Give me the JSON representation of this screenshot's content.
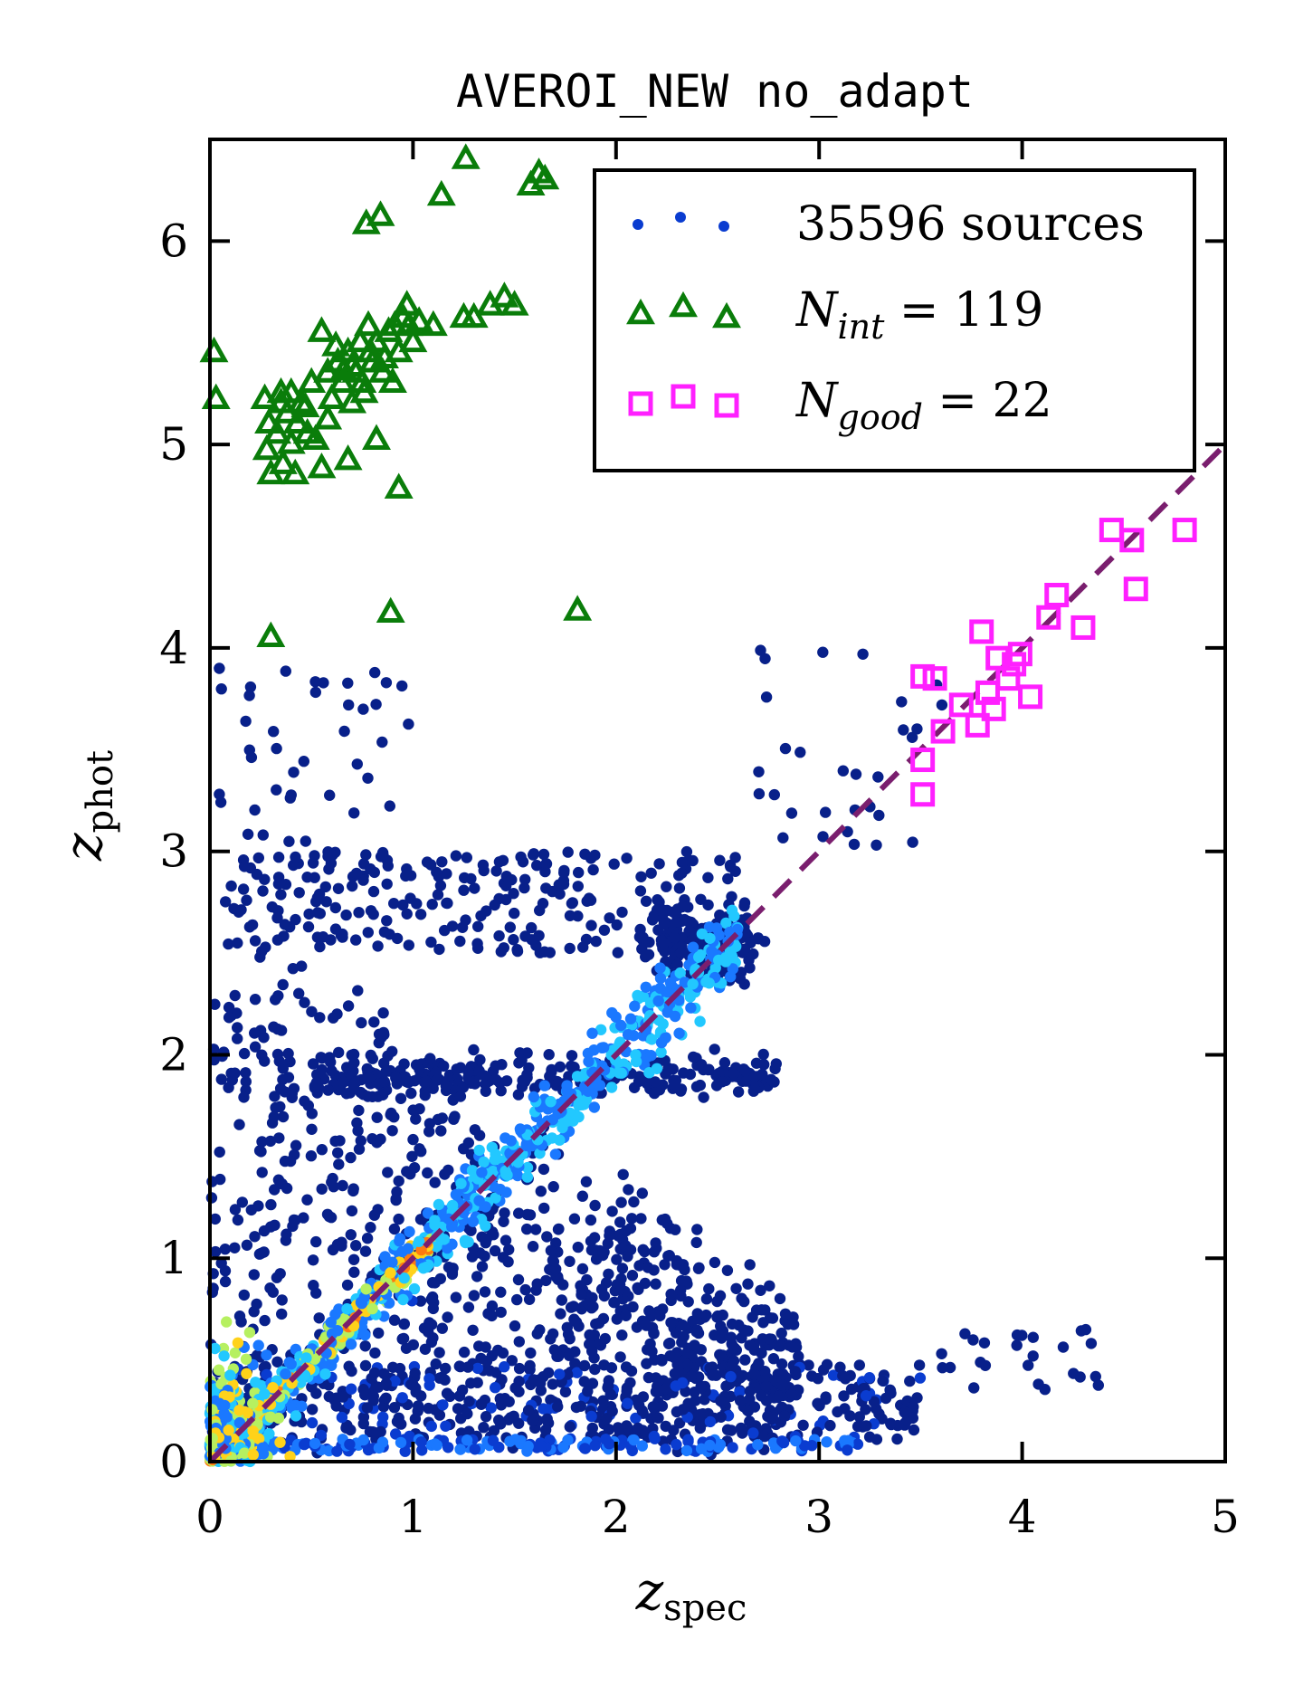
{
  "chart_data": {
    "type": "scatter",
    "title": "AVEROI_NEW no_adapt",
    "xlabel": "z",
    "xlabel_sub": "spec",
    "ylabel": "z",
    "ylabel_sub": "phot",
    "xlim": [
      0,
      5
    ],
    "ylim": [
      0,
      6.5
    ],
    "xticks": [
      "0",
      "1",
      "2",
      "3",
      "4",
      "5"
    ],
    "yticks": [
      "0",
      "1",
      "2",
      "3",
      "4",
      "5",
      "6"
    ],
    "grid": false,
    "legend_position": "top-right",
    "legend": {
      "sources": "35596 sources",
      "int_sym": "N",
      "int_sub": "int",
      "int_rest": " = 119",
      "good_sym": "N",
      "good_sub": "good",
      "good_rest": " = 22"
    },
    "colors": {
      "outlier": "#0a7d0a",
      "good": "#ff20ff",
      "one_to_one": "#7a1e6e",
      "density": [
        "#08208a",
        "#0a3cd0",
        "#1a78ff",
        "#22c8ff",
        "#b6f060",
        "#ffd21a",
        "#ff7a10"
      ]
    },
    "series": [
      {
        "name": "35596 sources",
        "style": "density-dots",
        "n": 35596
      },
      {
        "name": "N_int = 119",
        "style": "triangle",
        "points": [
          [
            0.02,
            5.45
          ],
          [
            0.03,
            5.22
          ],
          [
            0.27,
            5.22
          ],
          [
            0.29,
            5.1
          ],
          [
            0.28,
            4.97
          ],
          [
            0.3,
            4.85
          ],
          [
            0.33,
            5.05
          ],
          [
            0.35,
            5.25
          ],
          [
            0.38,
            5.15
          ],
          [
            0.4,
            5.25
          ],
          [
            0.42,
            4.85
          ],
          [
            0.45,
            5.2
          ],
          [
            0.5,
            5.3
          ],
          [
            0.52,
            5.02
          ],
          [
            0.55,
            4.88
          ],
          [
            0.58,
            5.35
          ],
          [
            0.6,
            5.22
          ],
          [
            0.63,
            5.4
          ],
          [
            0.65,
            5.3
          ],
          [
            0.68,
            5.45
          ],
          [
            0.7,
            5.2
          ],
          [
            0.72,
            5.35
          ],
          [
            0.74,
            5.5
          ],
          [
            0.76,
            5.25
          ],
          [
            0.78,
            5.58
          ],
          [
            0.8,
            5.4
          ],
          [
            0.82,
            5.5
          ],
          [
            0.85,
            5.35
          ],
          [
            0.88,
            5.55
          ],
          [
            0.9,
            5.3
          ],
          [
            0.93,
            5.45
          ],
          [
            0.95,
            5.62
          ],
          [
            0.97,
            5.68
          ],
          [
            1.0,
            5.5
          ],
          [
            1.03,
            5.6
          ],
          [
            1.1,
            5.58
          ],
          [
            1.25,
            5.62
          ],
          [
            1.3,
            5.62
          ],
          [
            1.38,
            5.68
          ],
          [
            1.45,
            5.72
          ],
          [
            1.5,
            5.68
          ],
          [
            0.68,
            4.92
          ],
          [
            0.82,
            5.02
          ],
          [
            0.93,
            4.78
          ],
          [
            0.3,
            4.05
          ],
          [
            0.89,
            4.17
          ],
          [
            1.81,
            4.18
          ],
          [
            0.77,
            6.08
          ],
          [
            0.84,
            6.12
          ],
          [
            1.14,
            6.22
          ],
          [
            1.26,
            6.4
          ],
          [
            1.58,
            6.27
          ],
          [
            1.62,
            6.33
          ],
          [
            1.65,
            6.3
          ],
          [
            0.55,
            5.55
          ],
          [
            0.62,
            5.48
          ],
          [
            0.35,
            5.2
          ],
          [
            0.43,
            5.1
          ],
          [
            0.47,
            5.18
          ],
          [
            0.58,
            5.12
          ],
          [
            0.66,
            5.36
          ],
          [
            0.7,
            5.38
          ],
          [
            0.75,
            5.3
          ],
          [
            0.79,
            5.45
          ],
          [
            0.86,
            5.42
          ],
          [
            0.91,
            5.58
          ],
          [
            0.98,
            5.58
          ],
          [
            0.36,
            4.9
          ],
          [
            0.4,
            5.0
          ],
          [
            0.48,
            5.05
          ]
        ]
      },
      {
        "name": "N_good = 22",
        "style": "square",
        "points": [
          [
            3.51,
            3.28
          ],
          [
            3.51,
            3.45
          ],
          [
            3.51,
            3.86
          ],
          [
            3.57,
            3.85
          ],
          [
            3.61,
            3.59
          ],
          [
            3.7,
            3.72
          ],
          [
            3.78,
            3.62
          ],
          [
            3.8,
            4.08
          ],
          [
            3.83,
            3.78
          ],
          [
            3.86,
            3.7
          ],
          [
            3.88,
            3.95
          ],
          [
            3.93,
            3.85
          ],
          [
            3.99,
            3.97
          ],
          [
            4.04,
            3.76
          ],
          [
            4.13,
            4.15
          ],
          [
            4.17,
            4.26
          ],
          [
            4.3,
            4.1
          ],
          [
            4.44,
            4.58
          ],
          [
            4.54,
            4.53
          ],
          [
            4.56,
            4.29
          ],
          [
            4.8,
            4.58
          ],
          [
            3.96,
            3.92
          ]
        ]
      },
      {
        "name": "one-to-one",
        "style": "dashed-line",
        "points": [
          [
            0,
            0
          ],
          [
            5,
            5
          ]
        ]
      }
    ]
  }
}
